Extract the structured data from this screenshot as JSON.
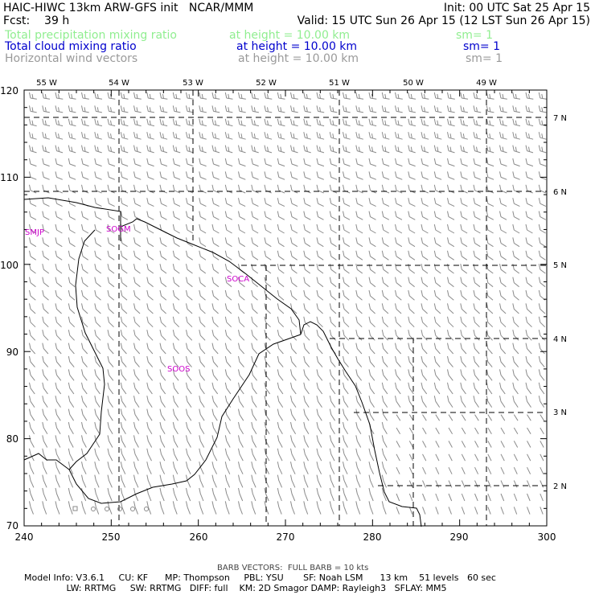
{
  "header": {
    "title": "HAIC-HIWC 13km ARW-GFS init   NCAR/MMM",
    "init": "Init: 00 UTC Sat 25 Apr 15",
    "fcst": "Fcst:    39 h",
    "valid": "Valid: 15 UTC Sun 26 Apr 15 (12 LST Sun 26 Apr 15)",
    "fields": [
      {
        "name": "Total precipitation mixing ratio",
        "height": "at height = 10.00 km",
        "sm": "sm= 1",
        "color": "#90ee90"
      },
      {
        "name": "Total cloud mixing ratio",
        "height": "at height = 10.00 km",
        "sm": "sm= 1",
        "color": "#0000cd"
      },
      {
        "name": "Horizontal wind vectors",
        "height": "at height = 10.00 km",
        "sm": "sm= 1",
        "color": "#9a9a9a"
      }
    ]
  },
  "map": {
    "x_ticks": [
      "240",
      "250",
      "260",
      "270",
      "280",
      "290",
      "300"
    ],
    "y_ticks": [
      "70",
      "80",
      "90",
      "100",
      "110",
      "120"
    ],
    "lon_labels": [
      "55 W",
      "54 W",
      "53 W",
      "52 W",
      "51 W",
      "50 W",
      "49 W"
    ],
    "lat_labels": [
      "7 N",
      "6 N",
      "5 N",
      "4 N",
      "3 N",
      "2 N"
    ],
    "stations": [
      "SMJP",
      "SOGM",
      "SOCA",
      "SOOS"
    ],
    "station_color": "#cc00cc"
  },
  "footer": {
    "barb_note": "BARB VECTORS:  FULL BARB = 10 kts",
    "model_line1": "Model Info: V3.6.1     CU: KF      MP: Thompson     PBL: YSU       SF: Noah LSM      13 km    51 levels   60 sec",
    "model_line2": "               LW: RRTMG     SW: RRTMG   DIFF: full    KM: 2D Smagor DAMP: Rayleigh3   SFLAY: MM5"
  }
}
